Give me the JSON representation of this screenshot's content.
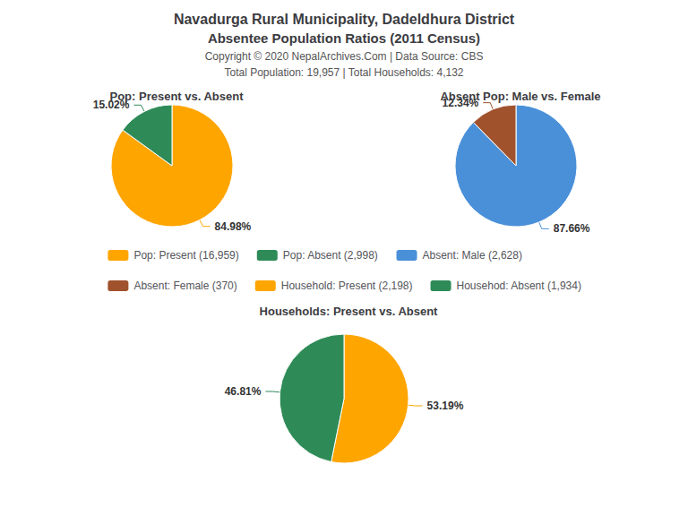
{
  "title": "Navadurga Rural Municipality, Dadeldhura District",
  "subtitle": "Absentee Population Ratios (2011 Census)",
  "annotations": [
    "Copyright © 2020 NepalArchives.Com | Data Source: CBS",
    "Total Population: 19,957 | Total Households: 4,132"
  ],
  "legend": "center",
  "chart_data": [
    {
      "type": "pie",
      "title": "Pop: Present vs. Absent",
      "categories": [
        "Pop: Present (16,959)",
        "Pop: Absent (2,998)"
      ],
      "values": [
        84.98,
        15.02
      ],
      "value_labels": [
        "84.98%",
        "15.02%"
      ],
      "colors": [
        "#FFA500",
        "#2E8B57"
      ],
      "data_labels": true
    },
    {
      "type": "pie",
      "title": "Absent Pop: Male vs. Female",
      "categories": [
        "Absent: Male (2,628)",
        "Absent: Female (370)"
      ],
      "values": [
        87.66,
        12.34
      ],
      "value_labels": [
        "87.66%",
        "12.34%"
      ],
      "colors": [
        "#4A90D9",
        "#A0522D"
      ],
      "data_labels": true
    },
    {
      "type": "pie",
      "title": "Households: Present vs. Absent",
      "categories": [
        "Household: Present (2,198)",
        "Househod: Absent (1,934)"
      ],
      "values": [
        53.19,
        46.81
      ],
      "value_labels": [
        "53.19%",
        "46.81%"
      ],
      "colors": [
        "#FFA500",
        "#2E8B57"
      ],
      "data_labels": true
    }
  ]
}
